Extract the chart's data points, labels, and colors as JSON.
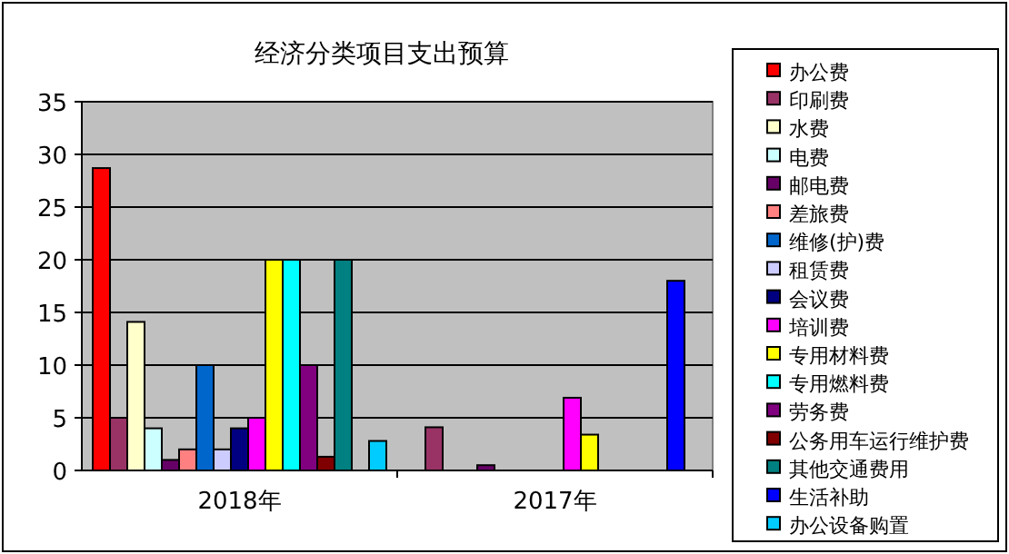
{
  "chart_data": {
    "type": "bar",
    "title": "经济分类项目支出预算",
    "categories": [
      "2018年",
      "2017年"
    ],
    "ylim": [
      0,
      35
    ],
    "yticks": [
      0,
      5,
      10,
      15,
      20,
      25,
      30,
      35
    ],
    "grid": "y",
    "legend": "right",
    "series": [
      {
        "name": "办公费",
        "color": "#ff0000",
        "values": [
          28.7,
          null
        ]
      },
      {
        "name": "印刷费",
        "color": "#993366",
        "values": [
          5,
          4.1
        ]
      },
      {
        "name": "水费",
        "color": "#ffffcc",
        "values": [
          14.1,
          null
        ]
      },
      {
        "name": "电费",
        "color": "#ccffff",
        "values": [
          4,
          null
        ]
      },
      {
        "name": "邮电费",
        "color": "#660066",
        "values": [
          1,
          0.5
        ]
      },
      {
        "name": "差旅费",
        "color": "#ff8080",
        "values": [
          2,
          null
        ]
      },
      {
        "name": "维修(护)费",
        "color": "#0066cc",
        "values": [
          10,
          null
        ]
      },
      {
        "name": "租赁费",
        "color": "#ccccff",
        "values": [
          2,
          null
        ]
      },
      {
        "name": "会议费",
        "color": "#000080",
        "values": [
          4,
          null
        ]
      },
      {
        "name": "培训费",
        "color": "#ff00ff",
        "values": [
          5,
          6.9
        ]
      },
      {
        "name": "专用材料费",
        "color": "#ffff00",
        "values": [
          20,
          3.4
        ]
      },
      {
        "name": "专用燃料费",
        "color": "#00ffff",
        "values": [
          20,
          null
        ]
      },
      {
        "name": "劳务费",
        "color": "#800080",
        "values": [
          10,
          null
        ]
      },
      {
        "name": "公务用车运行维护费",
        "color": "#800000",
        "values": [
          1.3,
          null
        ]
      },
      {
        "name": "其他交通费用",
        "color": "#008080",
        "values": [
          20,
          null
        ]
      },
      {
        "name": "生活补助",
        "color": "#0000ff",
        "values": [
          null,
          18
        ]
      },
      {
        "name": "办公设备购置",
        "color": "#00ccff",
        "values": [
          2.8,
          null
        ]
      }
    ]
  }
}
